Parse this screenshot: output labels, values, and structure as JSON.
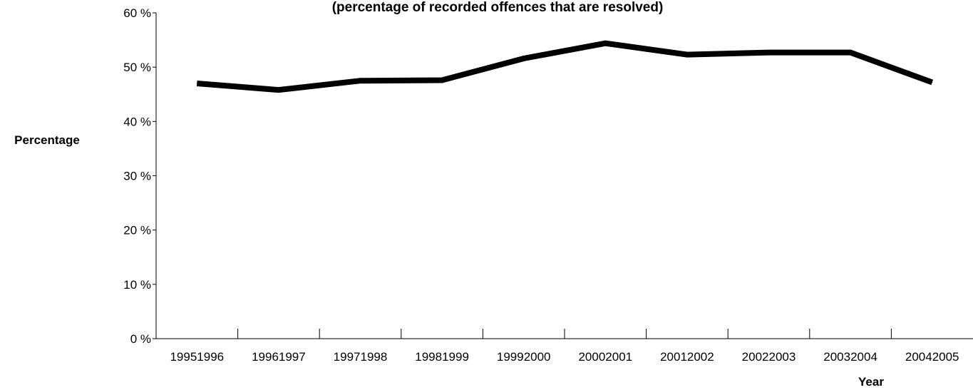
{
  "chart_data": {
    "type": "line",
    "title": "(percentage of recorded offences that are resolved)",
    "xlabel": "Year",
    "ylabel": "Percentage",
    "categories": [
      "19951996",
      "19961997",
      "19971998",
      "19981999",
      "19992000",
      "20002001",
      "20012002",
      "20022003",
      "20032004",
      "20042005"
    ],
    "series": [
      {
        "values": [
          47.0,
          45.8,
          47.5,
          47.6,
          51.6,
          54.4,
          52.3,
          52.7,
          52.7,
          47.2
        ]
      }
    ],
    "ylim": [
      0,
      60
    ],
    "yticks": [
      0,
      10,
      20,
      30,
      40,
      50,
      60
    ],
    "ytick_labels": [
      "0 %",
      "10 %",
      "20 %",
      "30 %",
      "40 %",
      "50 %",
      "60 %"
    ],
    "grid": false,
    "line_color": "#000000"
  }
}
